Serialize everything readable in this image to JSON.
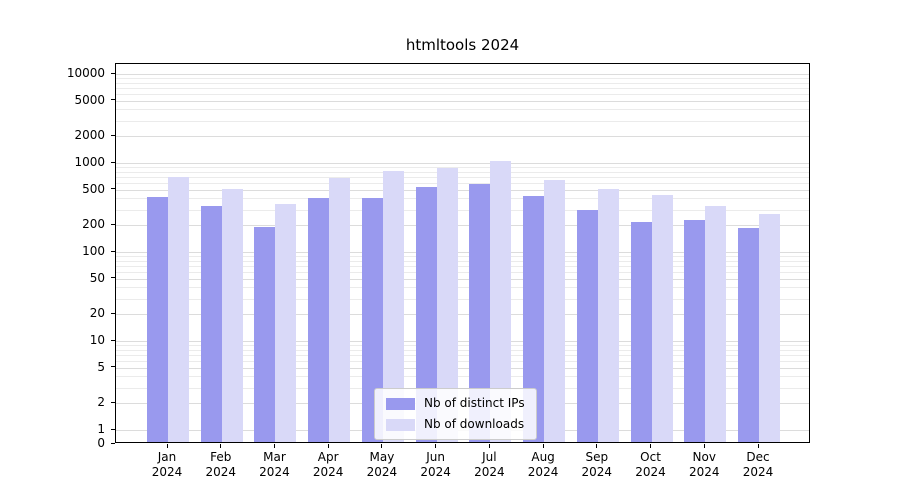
{
  "chart_data": {
    "type": "bar",
    "title": "htmltools 2024",
    "x_categories": [
      "Jan",
      "Feb",
      "Mar",
      "Apr",
      "May",
      "Jun",
      "Jul",
      "Aug",
      "Sep",
      "Oct",
      "Nov",
      "Dec"
    ],
    "x_year": "2024",
    "series": [
      {
        "name": "Nb of distinct IPs",
        "color": "#9999ee",
        "values": [
          420,
          330,
          190,
          400,
          400,
          540,
          580,
          430,
          300,
          220,
          230,
          185
        ]
      },
      {
        "name": "Nb of downloads",
        "color": "#d9d9f8",
        "values": [
          700,
          510,
          350,
          670,
          820,
          880,
          1060,
          650,
          510,
          440,
          330,
          265
        ]
      }
    ],
    "yticks": [
      0,
      1,
      2,
      5,
      10,
      20,
      50,
      100,
      200,
      500,
      1000,
      2000,
      5000,
      10000
    ],
    "y_scale": "symlog",
    "ylim": [
      0,
      13000
    ],
    "grid": "horizontal",
    "legend_position": "lower-center"
  }
}
